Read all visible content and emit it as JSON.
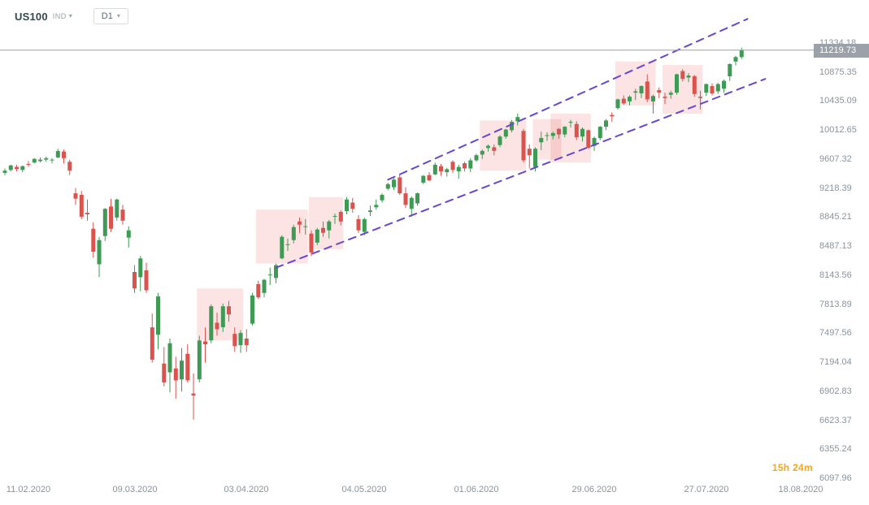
{
  "header": {
    "symbol": "US100",
    "instrument_type": "IND",
    "timeframe": "D1"
  },
  "current_price": {
    "value": "11219.73"
  },
  "countdown": {
    "text": "15h 24m"
  },
  "price_scale": {
    "labels": [
      "11334.18",
      "10875.35",
      "10435.09",
      "10012.65",
      "9607.32",
      "9218.39",
      "8845.21",
      "8487.13",
      "8143.56",
      "7813.89",
      "7497.56",
      "7194.04",
      "6902.83",
      "6623.37",
      "6355.24",
      "6097.96"
    ]
  },
  "time_scale": {
    "labels": [
      {
        "text": "11.02.2020",
        "index": 4
      },
      {
        "text": "09.03.2020",
        "index": 22
      },
      {
        "text": "03.04.2020",
        "index": 41
      },
      {
        "text": "04.05.2020",
        "index": 61
      },
      {
        "text": "01.06.2020",
        "index": 80
      },
      {
        "text": "29.06.2020",
        "index": 100
      },
      {
        "text": "27.07.2020",
        "index": 119
      },
      {
        "text": "18.08.2020",
        "index": 135
      }
    ]
  },
  "colors": {
    "bull": "#3f9a55",
    "bear": "#d9544f",
    "zone_fill": "rgba(228,87,80,0.16)",
    "channel": "#6747d1",
    "price_line": "#9aa1a8",
    "badge_bg": "#9aa1a8",
    "axis_text": "#8b949c",
    "countdown": "#f5a623"
  },
  "chart_data": {
    "type": "candlestick",
    "symbol": "US100",
    "timeframe": "D1",
    "price_scale_type": "logarithmic",
    "last_price": 11219.73,
    "candles_format": [
      "date (DD.MM, year 2020)",
      "open",
      "high",
      "low",
      "close"
    ],
    "candles": [
      [
        "05.02",
        9420,
        9480,
        9390,
        9450
      ],
      [
        "06.02",
        9460,
        9530,
        9440,
        9520
      ],
      [
        "07.02",
        9500,
        9530,
        9440,
        9470
      ],
      [
        "10.02",
        9460,
        9520,
        9430,
        9510
      ],
      [
        "11.02",
        9540,
        9580,
        9500,
        9530
      ],
      [
        "12.02",
        9560,
        9620,
        9550,
        9610
      ],
      [
        "13.02",
        9580,
        9630,
        9560,
        9600
      ],
      [
        "14.02",
        9600,
        9640,
        9570,
        9620
      ],
      [
        "18.02",
        9590,
        9620,
        9550,
        9600
      ],
      [
        "19.02",
        9630,
        9750,
        9620,
        9720
      ],
      [
        "20.02",
        9710,
        9740,
        9550,
        9620
      ],
      [
        "21.02",
        9570,
        9600,
        9390,
        9450
      ],
      [
        "24.02",
        9150,
        9220,
        9000,
        9080
      ],
      [
        "25.02",
        9130,
        9180,
        8820,
        8850
      ],
      [
        "26.02",
        8900,
        9070,
        8800,
        8880
      ],
      [
        "27.02",
        8700,
        8780,
        8350,
        8420
      ],
      [
        "28.02",
        8270,
        8600,
        8120,
        8560
      ],
      [
        "02.03",
        8610,
        8960,
        8550,
        8950
      ],
      [
        "03.03",
        8980,
        9080,
        8660,
        8700
      ],
      [
        "04.03",
        8840,
        9080,
        8800,
        9070
      ],
      [
        "05.03",
        8940,
        9000,
        8750,
        8800
      ],
      [
        "06.03",
        8590,
        8730,
        8470,
        8680
      ],
      [
        "09.03",
        8180,
        8260,
        7940,
        7990
      ],
      [
        "10.03",
        8120,
        8370,
        7960,
        8340
      ],
      [
        "11.03",
        8200,
        8290,
        7940,
        7970
      ],
      [
        "12.03",
        7560,
        7710,
        7190,
        7220
      ],
      [
        "13.03",
        7480,
        7940,
        7330,
        7900
      ],
      [
        "16.03",
        7180,
        7350,
        6950,
        6990
      ],
      [
        "17.03",
        7090,
        7440,
        6890,
        7390
      ],
      [
        "18.03",
        7130,
        7250,
        6830,
        7010
      ],
      [
        "19.03",
        7020,
        7340,
        6900,
        7210
      ],
      [
        "20.03",
        7280,
        7380,
        6990,
        7010
      ],
      [
        "23.03",
        6880,
        7080,
        6630,
        6860
      ],
      [
        "24.03",
        7020,
        7470,
        6990,
        7420
      ],
      [
        "25.03",
        7410,
        7560,
        7190,
        7380
      ],
      [
        "26.03",
        7420,
        7810,
        7390,
        7790
      ],
      [
        "27.03",
        7610,
        7720,
        7470,
        7540
      ],
      [
        "30.03",
        7560,
        7820,
        7510,
        7790
      ],
      [
        "31.03",
        7790,
        7850,
        7620,
        7700
      ],
      [
        "01.04",
        7490,
        7560,
        7300,
        7360
      ],
      [
        "02.04",
        7370,
        7530,
        7290,
        7500
      ],
      [
        "03.04",
        7440,
        7540,
        7300,
        7370
      ],
      [
        "06.04",
        7600,
        7940,
        7580,
        7910
      ],
      [
        "07.04",
        8040,
        8080,
        7870,
        7890
      ],
      [
        "08.04",
        7940,
        8100,
        7890,
        8090
      ],
      [
        "09.04",
        8150,
        8230,
        8030,
        8150
      ],
      [
        "13.04",
        8110,
        8280,
        8050,
        8260
      ],
      [
        "14.04",
        8340,
        8620,
        8330,
        8600
      ],
      [
        "15.04",
        8500,
        8580,
        8430,
        8510
      ],
      [
        "16.04",
        8560,
        8750,
        8520,
        8720
      ],
      [
        "17.04",
        8790,
        8840,
        8650,
        8750
      ],
      [
        "20.04",
        8720,
        8820,
        8630,
        8730
      ],
      [
        "21.04",
        8640,
        8680,
        8370,
        8410
      ],
      [
        "22.04",
        8530,
        8710,
        8500,
        8690
      ],
      [
        "23.04",
        8710,
        8790,
        8600,
        8650
      ],
      [
        "24.04",
        8680,
        8810,
        8580,
        8790
      ],
      [
        "27.04",
        8850,
        8890,
        8760,
        8860
      ],
      [
        "28.04",
        8910,
        8930,
        8740,
        8790
      ],
      [
        "29.04",
        8920,
        9100,
        8880,
        9070
      ],
      [
        "30.04",
        9030,
        9090,
        8900,
        8950
      ],
      [
        "01.05",
        8820,
        8870,
        8650,
        8680
      ],
      [
        "04.05",
        8660,
        8840,
        8620,
        8820
      ],
      [
        "05.05",
        8910,
        8990,
        8860,
        8930
      ],
      [
        "06.05",
        8970,
        9070,
        8940,
        9000
      ],
      [
        "07.05",
        9060,
        9150,
        9030,
        9130
      ],
      [
        "08.05",
        9210,
        9290,
        9190,
        9270
      ],
      [
        "11.05",
        9230,
        9350,
        9190,
        9330
      ],
      [
        "12.05",
        9360,
        9390,
        9130,
        9150
      ],
      [
        "13.05",
        9150,
        9230,
        8960,
        9000
      ],
      [
        "14.05",
        8950,
        9110,
        8850,
        9090
      ],
      [
        "15.05",
        9020,
        9160,
        8990,
        9150
      ],
      [
        "18.05",
        9290,
        9390,
        9270,
        9380
      ],
      [
        "19.05",
        9390,
        9430,
        9310,
        9320
      ],
      [
        "20.05",
        9400,
        9560,
        9390,
        9530
      ],
      [
        "21.05",
        9510,
        9540,
        9380,
        9440
      ],
      [
        "22.05",
        9430,
        9490,
        9370,
        9470
      ],
      [
        "26.05",
        9570,
        9590,
        9420,
        9460
      ],
      [
        "27.05",
        9440,
        9530,
        9340,
        9500
      ],
      [
        "28.05",
        9550,
        9570,
        9440,
        9480
      ],
      [
        "29.05",
        9480,
        9620,
        9430,
        9590
      ],
      [
        "01.06",
        9590,
        9680,
        9570,
        9660
      ],
      [
        "02.06",
        9670,
        9740,
        9610,
        9720
      ],
      [
        "03.06",
        9760,
        9810,
        9710,
        9790
      ],
      [
        "04.06",
        9770,
        9810,
        9660,
        9720
      ],
      [
        "05.06",
        9800,
        9940,
        9770,
        9920
      ],
      [
        "08.06",
        9920,
        10030,
        9890,
        10020
      ],
      [
        "09.06",
        10010,
        10160,
        9980,
        10130
      ],
      [
        "10.06",
        10140,
        10250,
        10080,
        10200
      ],
      [
        "11.06",
        10000,
        10030,
        9560,
        9590
      ],
      [
        "12.06",
        9750,
        9810,
        9480,
        9660
      ],
      [
        "15.06",
        9500,
        9770,
        9440,
        9750
      ],
      [
        "16.06",
        9840,
        9990,
        9730,
        9900
      ],
      [
        "17.06",
        9930,
        9980,
        9860,
        9940
      ],
      [
        "18.06",
        9930,
        9990,
        9880,
        9970
      ],
      [
        "19.06",
        10030,
        10040,
        9890,
        9950
      ],
      [
        "22.06",
        9950,
        10070,
        9910,
        10060
      ],
      [
        "23.06",
        10120,
        10160,
        10050,
        10130
      ],
      [
        "24.06",
        10100,
        10140,
        9870,
        9910
      ],
      [
        "25.06",
        9920,
        10050,
        9850,
        10030
      ],
      [
        "26.06",
        10010,
        10020,
        9750,
        9760
      ],
      [
        "29.06",
        9790,
        9920,
        9720,
        9900
      ],
      [
        "30.06",
        9900,
        10070,
        9870,
        10060
      ],
      [
        "01.07",
        10060,
        10170,
        10010,
        10150
      ],
      [
        "02.07",
        10230,
        10270,
        10130,
        10210
      ],
      [
        "06.07",
        10330,
        10470,
        10310,
        10460
      ],
      [
        "07.07",
        10470,
        10520,
        10380,
        10400
      ],
      [
        "08.07",
        10430,
        10520,
        10370,
        10500
      ],
      [
        "09.07",
        10560,
        10620,
        10450,
        10580
      ],
      [
        "10.07",
        10550,
        10670,
        10480,
        10660
      ],
      [
        "13.07",
        10730,
        10840,
        10420,
        10460
      ],
      [
        "14.07",
        10430,
        10530,
        10250,
        10510
      ],
      [
        "15.07",
        10600,
        10640,
        10480,
        10560
      ],
      [
        "16.07",
        10500,
        10560,
        10390,
        10480
      ],
      [
        "17.07",
        10530,
        10590,
        10470,
        10560
      ],
      [
        "20.07",
        10560,
        10850,
        10530,
        10840
      ],
      [
        "21.07",
        10890,
        10920,
        10730,
        10770
      ],
      [
        "22.07",
        10790,
        10860,
        10720,
        10820
      ],
      [
        "23.07",
        10810,
        10830,
        10500,
        10540
      ],
      [
        "24.07",
        10500,
        10590,
        10310,
        10480
      ],
      [
        "27.07",
        10560,
        10700,
        10510,
        10690
      ],
      [
        "28.07",
        10660,
        10700,
        10520,
        10550
      ],
      [
        "29.07",
        10580,
        10710,
        10540,
        10690
      ],
      [
        "30.07",
        10620,
        10760,
        10560,
        10740
      ],
      [
        "31.07",
        10810,
        11010,
        10740,
        11000
      ],
      [
        "03.08",
        11040,
        11130,
        10980,
        11110
      ],
      [
        "04.08",
        11110,
        11260,
        11080,
        11219.73
      ]
    ],
    "trend_channel": {
      "style": "dashed",
      "lower": {
        "i1": 46,
        "p1": 8230,
        "i2": 129,
        "p2": 10770
      },
      "upper": {
        "i1": 65,
        "p1": 9330,
        "i2": 126,
        "p2": 11730
      }
    },
    "zones": [
      {
        "i1": 33,
        "i2": 40,
        "p1": 7420,
        "p2": 7990
      },
      {
        "i1": 43,
        "i2": 51,
        "p1": 8280,
        "p2": 8940
      },
      {
        "i1": 52,
        "i2": 57,
        "p1": 8450,
        "p2": 9100
      },
      {
        "i1": 81,
        "i2": 88,
        "p1": 9450,
        "p2": 10150
      },
      {
        "i1": 90,
        "i2": 94,
        "p1": 9600,
        "p2": 10170
      },
      {
        "i1": 93,
        "i2": 99,
        "p1": 9560,
        "p2": 10250
      },
      {
        "i1": 104,
        "i2": 110,
        "p1": 10370,
        "p2": 11040
      },
      {
        "i1": 112,
        "i2": 118,
        "p1": 10250,
        "p2": 10985
      }
    ]
  }
}
